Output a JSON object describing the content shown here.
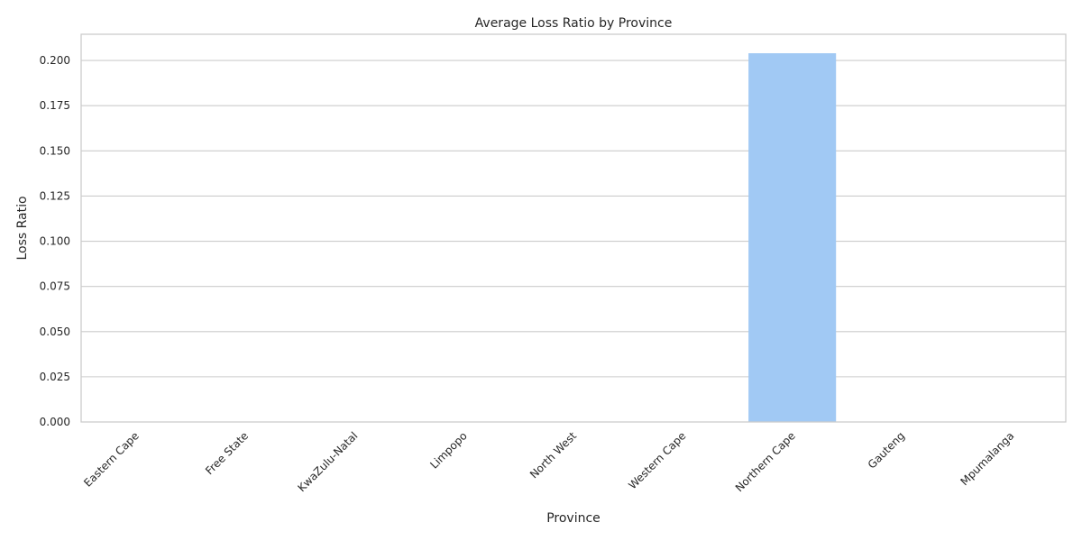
{
  "chart_data": {
    "type": "bar",
    "title": "Average Loss Ratio by Province",
    "xlabel": "Province",
    "ylabel": "Loss Ratio",
    "categories": [
      "Eastern Cape",
      "Free State",
      "KwaZulu-Natal",
      "Limpopo",
      "North West",
      "Western Cape",
      "Northern Cape",
      "Gauteng",
      "Mpumalanga"
    ],
    "values": [
      0,
      0,
      0,
      0,
      0,
      0,
      0.204,
      0,
      0
    ],
    "ylim": [
      0,
      0.2145
    ],
    "yticks": [
      0.0,
      0.025,
      0.05,
      0.075,
      0.1,
      0.125,
      0.15,
      0.175,
      0.2
    ],
    "ytick_labels": [
      "0.000",
      "0.025",
      "0.050",
      "0.075",
      "0.100",
      "0.125",
      "0.150",
      "0.175",
      "0.200"
    ],
    "grid": true,
    "bar_color": "#a1c9f4",
    "text_color": "#262626",
    "grid_color": "#cccccc"
  }
}
